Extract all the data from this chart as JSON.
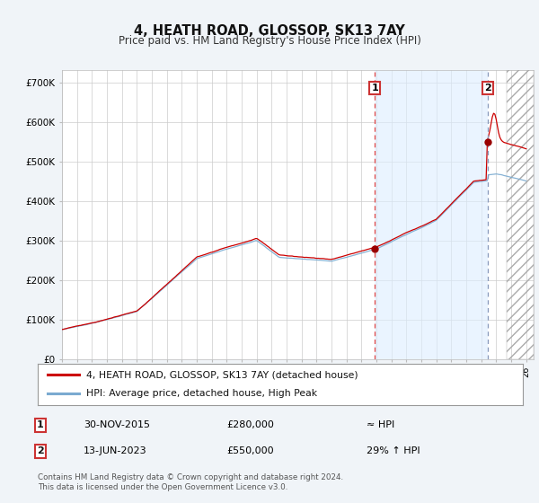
{
  "title": "4, HEATH ROAD, GLOSSOP, SK13 7AY",
  "subtitle": "Price paid vs. HM Land Registry's House Price Index (HPI)",
  "ylim": [
    0,
    730000
  ],
  "yticks": [
    0,
    100000,
    200000,
    300000,
    400000,
    500000,
    600000,
    700000
  ],
  "ytick_labels": [
    "£0",
    "£100K",
    "£200K",
    "£300K",
    "£400K",
    "£500K",
    "£600K",
    "£700K"
  ],
  "x_start_year": 1995,
  "x_end_year": 2026,
  "marker1_year": 2015.9,
  "marker1_price": 280000,
  "marker1_label": "1",
  "marker1_date": "30-NOV-2015",
  "marker1_value": "£280,000",
  "marker1_vs": "≈ HPI",
  "marker2_year": 2023.45,
  "marker2_price": 550000,
  "marker2_label": "2",
  "marker2_date": "13-JUN-2023",
  "marker2_value": "£550,000",
  "marker2_vs": "29% ↑ HPI",
  "legend1_label": "4, HEATH ROAD, GLOSSOP, SK13 7AY (detached house)",
  "legend2_label": "HPI: Average price, detached house, High Peak",
  "footer1": "Contains HM Land Registry data © Crown copyright and database right 2024.",
  "footer2": "This data is licensed under the Open Government Licence v3.0.",
  "line_color_red": "#cc0000",
  "line_color_blue": "#7aaad0",
  "bg_color": "#f0f4f8",
  "plot_bg": "#ffffff",
  "grid_color": "#cccccc",
  "marker_box_color": "#cc3333",
  "shade_color": "#ddeeff"
}
